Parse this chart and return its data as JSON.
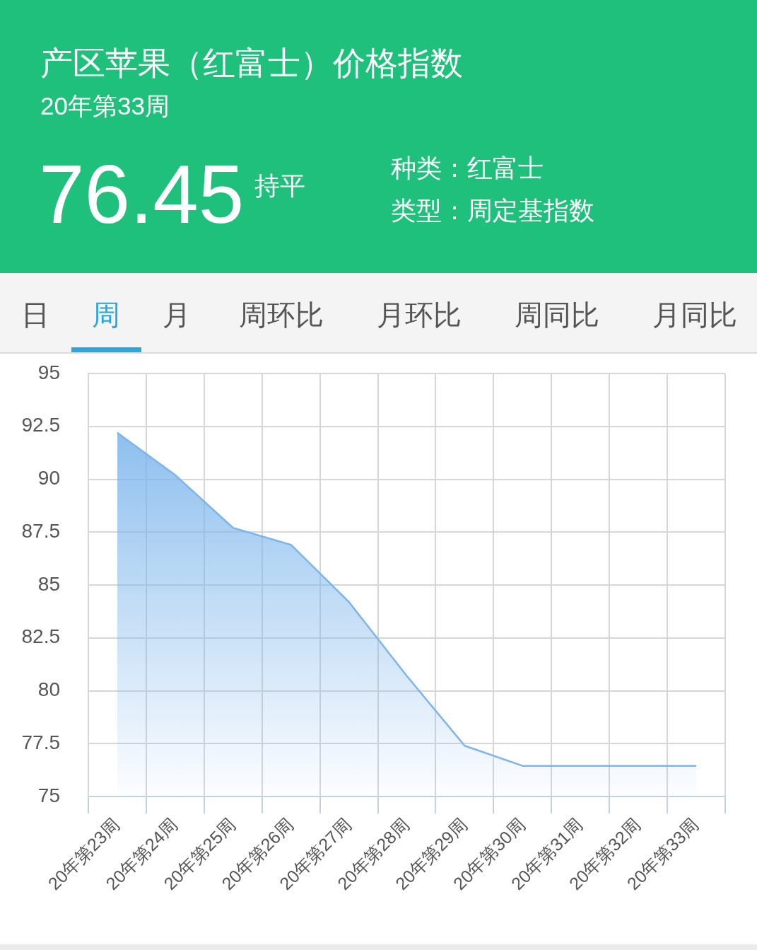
{
  "chart_data": {
    "type": "area",
    "title": "产区苹果（红富士）价格指数",
    "subtitle": "20年第33周",
    "annotations": [
      "76.45",
      "持平",
      "种类：红富士",
      "类型：周定基指数",
      "日",
      "周",
      "月",
      "周环比",
      "月环比",
      "周同比",
      "月同比"
    ],
    "categories": [
      "20年第23周",
      "20年第24周",
      "20年第25周",
      "20年第26周",
      "20年第27周",
      "20年第28周",
      "20年第29周",
      "20年第30周",
      "20年第31周",
      "20年第32周",
      "20年第33周"
    ],
    "color": "#7cb5ec",
    "values": [
      92.2,
      90.2,
      87.7,
      86.9,
      84.2,
      80.7,
      77.4,
      76.45,
      76.45,
      76.45,
      76.45
    ],
    "ylim": [
      75,
      95
    ],
    "yticks": [
      75,
      77.5,
      80,
      82.5,
      85,
      87.5,
      90,
      92.5,
      95
    ],
    "grid": true
  }
}
